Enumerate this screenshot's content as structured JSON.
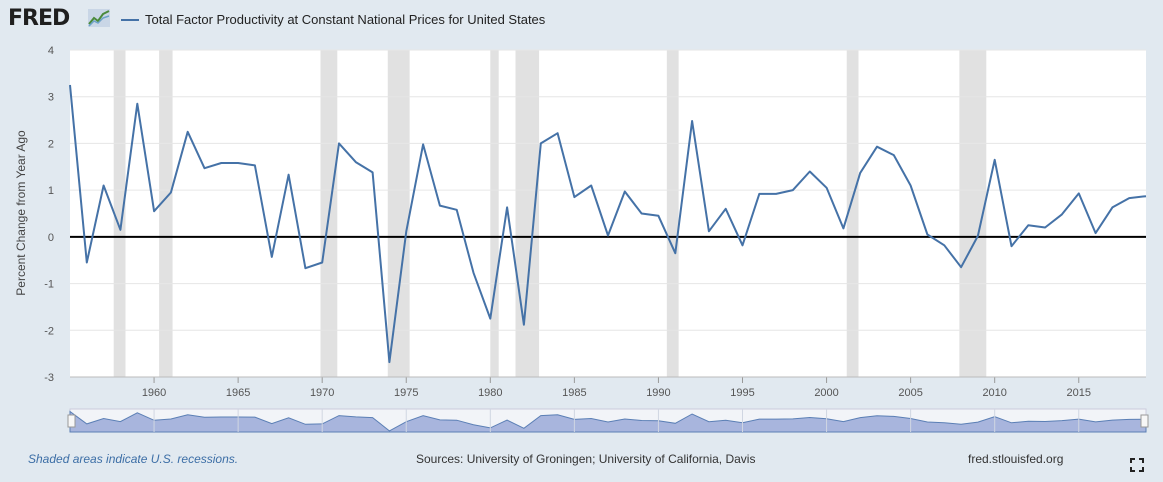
{
  "header": {
    "logo_text": "FRED",
    "series_title": "Total Factor Productivity at Constant National Prices for United States"
  },
  "footer": {
    "recession_note": "Shaded areas indicate U.S. recessions.",
    "sources": "Sources: University of Groningen; University of California, Davis",
    "site": "fred.stlouisfed.org"
  },
  "colors": {
    "line": "#4572a7",
    "recession": "#e1e1e1",
    "plot_bg": "#ffffff",
    "page_bg": "#e1e9f0",
    "navigator_fill": "#a8b5dd"
  },
  "chart_data": {
    "type": "line",
    "title": "",
    "xlabel": "",
    "ylabel": "Percent Change from Year Ago",
    "xlim": [
      1955,
      2019
    ],
    "ylim": [
      -3,
      4
    ],
    "y_ticks": [
      -3,
      -2,
      -1,
      0,
      1,
      2,
      3,
      4
    ],
    "y_tick_labels": [
      "-3",
      "-2",
      "-1",
      "0",
      "1",
      "2",
      "3",
      "4"
    ],
    "x_ticks": [
      1960,
      1965,
      1970,
      1975,
      1980,
      1985,
      1990,
      1995,
      2000,
      2005,
      2010,
      2015
    ],
    "x_tick_labels": [
      "1960",
      "1965",
      "1970",
      "1975",
      "1980",
      "1985",
      "1990",
      "1995",
      "2000",
      "2005",
      "2010",
      "2015"
    ],
    "grid": true,
    "legend": "top-left",
    "recessions": [
      [
        1957.6,
        1958.3
      ],
      [
        1960.3,
        1961.1
      ],
      [
        1969.9,
        1970.9
      ],
      [
        1973.9,
        1975.2
      ],
      [
        1980.0,
        1980.5
      ],
      [
        1981.5,
        1982.9
      ],
      [
        1990.5,
        1991.2
      ],
      [
        2001.2,
        2001.9
      ],
      [
        2007.9,
        2009.5
      ]
    ],
    "series": [
      {
        "name": "Total Factor Productivity at Constant National Prices for United States",
        "x": [
          1955,
          1956,
          1957,
          1958,
          1959,
          1960,
          1961,
          1962,
          1963,
          1964,
          1965,
          1966,
          1967,
          1968,
          1969,
          1970,
          1971,
          1972,
          1973,
          1974,
          1975,
          1976,
          1977,
          1978,
          1979,
          1980,
          1981,
          1982,
          1983,
          1984,
          1985,
          1986,
          1987,
          1988,
          1989,
          1990,
          1991,
          1992,
          1993,
          1994,
          1995,
          1996,
          1997,
          1998,
          1999,
          2000,
          2001,
          2002,
          2003,
          2004,
          2005,
          2006,
          2007,
          2008,
          2009,
          2010,
          2011,
          2012,
          2013,
          2014,
          2015,
          2016,
          2017,
          2018,
          2019
        ],
        "values": [
          3.25,
          -0.55,
          1.1,
          0.15,
          2.85,
          0.55,
          0.95,
          2.25,
          1.47,
          1.58,
          1.58,
          1.53,
          -0.43,
          1.33,
          -0.67,
          -0.55,
          2.0,
          1.6,
          1.38,
          -2.68,
          0.12,
          1.98,
          0.67,
          0.58,
          -0.77,
          -1.75,
          0.63,
          -1.88,
          2.0,
          2.22,
          0.85,
          1.1,
          0.03,
          0.97,
          0.5,
          0.45,
          -0.35,
          2.48,
          0.12,
          0.6,
          -0.18,
          0.92,
          0.92,
          1.0,
          1.4,
          1.05,
          0.18,
          1.37,
          1.93,
          1.75,
          1.1,
          0.05,
          -0.18,
          -0.65,
          0.02,
          1.65,
          -0.2,
          0.25,
          0.2,
          0.48,
          0.93,
          0.08,
          0.63,
          0.83,
          0.87
        ]
      }
    ]
  }
}
